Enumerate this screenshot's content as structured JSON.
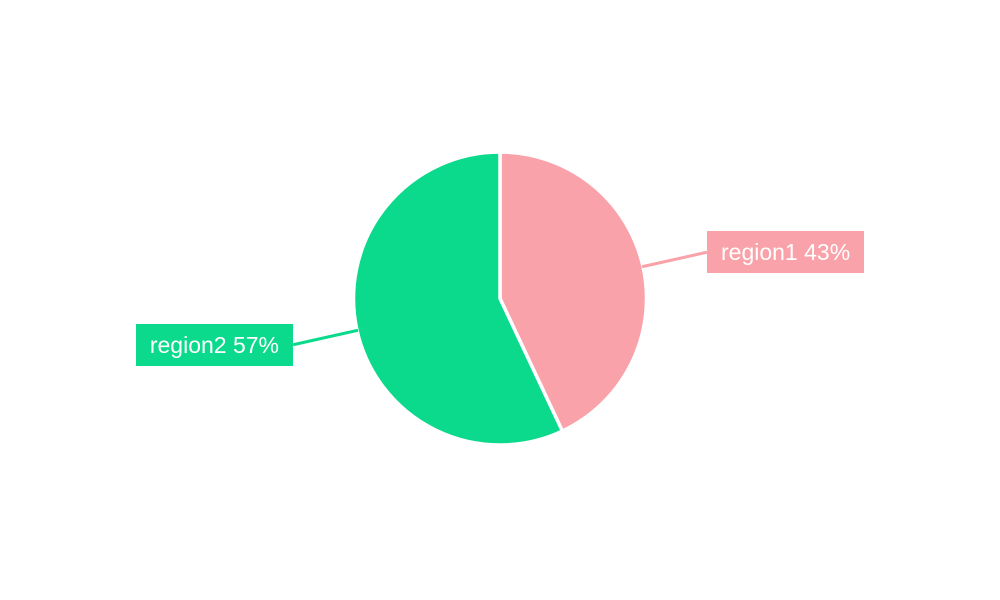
{
  "chart_data": {
    "type": "pie",
    "title": "",
    "labels": [
      "region1",
      "region2"
    ],
    "values": [
      43,
      57
    ],
    "unit": "%",
    "label_texts": [
      "region1 43%",
      "region2 57%"
    ],
    "colors": [
      "#f9a2a9",
      "#0bd98c"
    ],
    "text_color": "#ffffff",
    "background": "#ffffff",
    "start_angle": "top",
    "direction": "clockwise",
    "legend": "none",
    "labels_position": "outside-with-leader-lines",
    "slice_gap_color": "#ffffff"
  }
}
